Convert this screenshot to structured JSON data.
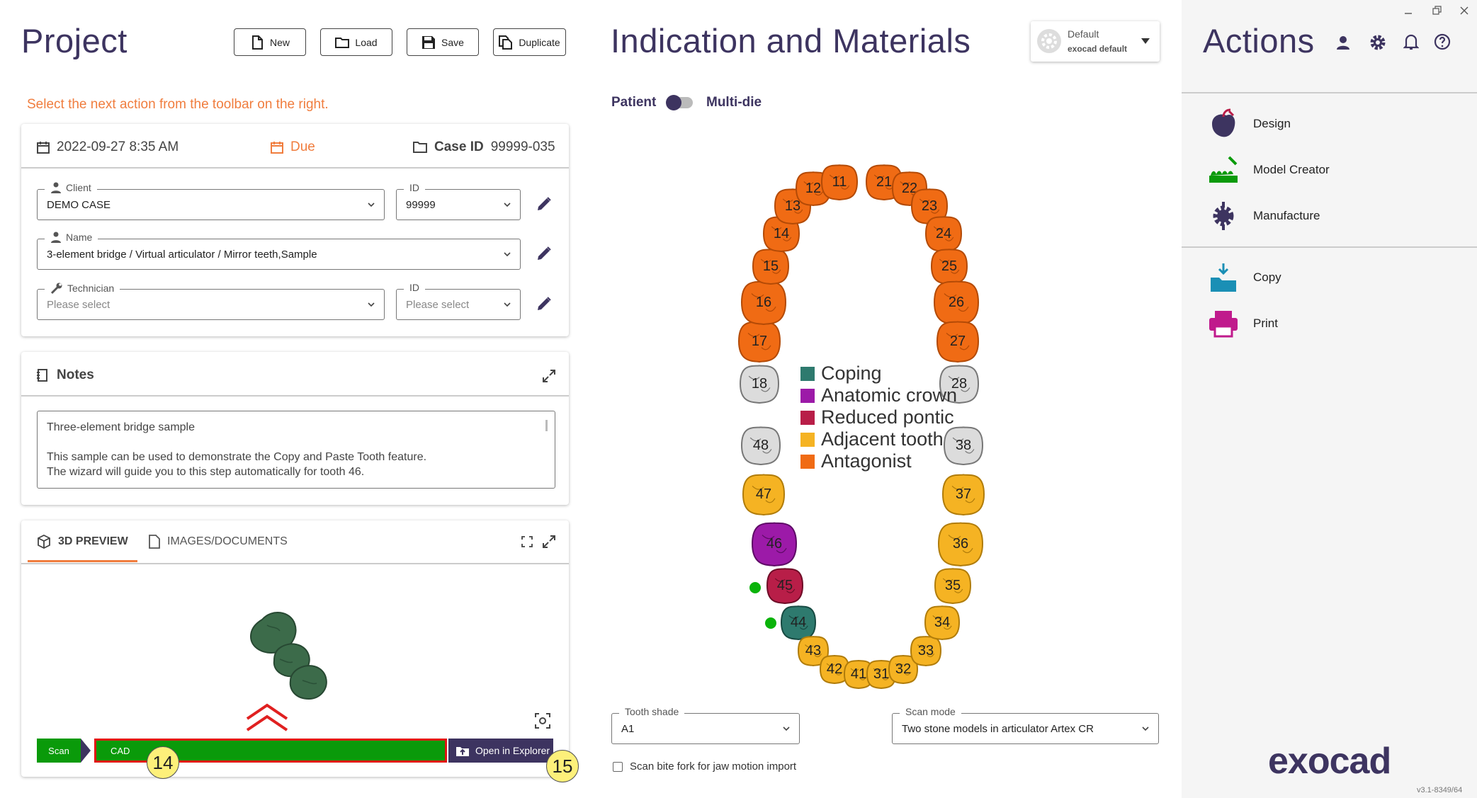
{
  "project": {
    "title": "Project",
    "buttons": {
      "new": "New",
      "load": "Load",
      "save": "Save",
      "duplicate": "Duplicate"
    },
    "hint": "Select the next action from the toolbar on the right.",
    "date": "2022-09-27 8:35 AM",
    "due": "Due",
    "case_id_label": "Case ID",
    "case_id": "99999-035",
    "client": {
      "label": "Client",
      "value": "DEMO CASE"
    },
    "client_id": {
      "label": "ID",
      "value": "99999"
    },
    "name": {
      "label": "Name",
      "value": "3-element bridge / Virtual articulator / Mirror teeth,Sample"
    },
    "technician": {
      "label": "Technician",
      "placeholder": "Please select"
    },
    "technician_id": {
      "label": "ID",
      "placeholder": "Please select"
    }
  },
  "notes": {
    "title": "Notes",
    "line1": "Three-element bridge sample",
    "line2": "This sample can be used to demonstrate the Copy and Paste Tooth feature.",
    "line3": "The wizard will guide you to this step automatically for tooth 46."
  },
  "preview": {
    "tab_3d": "3D PREVIEW",
    "tab_images": "IMAGES/DOCUMENTS",
    "step_scan": "Scan",
    "step_cad": "CAD",
    "open_explorer": "Open in Explorer",
    "callout_14": "14",
    "callout_15": "15"
  },
  "indication": {
    "title": "Indication and Materials",
    "preset_line1": "Default",
    "preset_line2": "exocad default",
    "toggle_left": "Patient",
    "toggle_right": "Multi-die",
    "legend": [
      {
        "label": "Coping",
        "color": "#2e7a6e"
      },
      {
        "label": "Anatomic crown",
        "color": "#9c1aa8"
      },
      {
        "label": "Reduced pontic",
        "color": "#b81e48"
      },
      {
        "label": "Adjacent tooth",
        "color": "#f5b323"
      },
      {
        "label": "Antagonist",
        "color": "#f06b14"
      }
    ],
    "tooth_shade": {
      "label": "Tooth shade",
      "value": "A1"
    },
    "scan_mode": {
      "label": "Scan mode",
      "value": "Two stone models in articulator Artex CR"
    },
    "bitefork": "Scan bite fork for jaw motion import"
  },
  "teeth": {
    "upper": [
      "18",
      "17",
      "16",
      "15",
      "14",
      "13",
      "12",
      "11",
      "21",
      "22",
      "23",
      "24",
      "25",
      "26",
      "27",
      "28"
    ],
    "lower": [
      "48",
      "47",
      "46",
      "45",
      "44",
      "43",
      "42",
      "41",
      "31",
      "32",
      "33",
      "34",
      "35",
      "36",
      "37",
      "38"
    ],
    "status": {
      "18": "none",
      "17": "antagonist",
      "16": "antagonist",
      "15": "antagonist",
      "14": "antagonist",
      "13": "antagonist",
      "12": "antagonist",
      "11": "antagonist",
      "21": "antagonist",
      "22": "antagonist",
      "23": "antagonist",
      "24": "antagonist",
      "25": "antagonist",
      "26": "antagonist",
      "27": "antagonist",
      "28": "none",
      "48": "none",
      "47": "adjacent",
      "46": "anatomic",
      "45": "pontic",
      "44": "coping",
      "43": "adjacent",
      "42": "adjacent",
      "41": "adjacent",
      "31": "adjacent",
      "32": "adjacent",
      "33": "adjacent",
      "34": "adjacent",
      "35": "adjacent",
      "36": "adjacent",
      "37": "adjacent",
      "38": "none"
    }
  },
  "actions": {
    "title": "Actions",
    "items": [
      {
        "label": "Design",
        "icon": "design-icon"
      },
      {
        "label": "Model Creator",
        "icon": "model-creator-icon"
      },
      {
        "label": "Manufacture",
        "icon": "manufacture-icon"
      },
      {
        "label": "Copy",
        "icon": "copy-icon"
      },
      {
        "label": "Print",
        "icon": "print-icon"
      }
    ]
  },
  "brand": "exocad",
  "version": "v3.1-8349/64",
  "colors": {
    "accent": "#f07d3e",
    "purple": "#3d3460",
    "green": "#0a9a0a"
  }
}
